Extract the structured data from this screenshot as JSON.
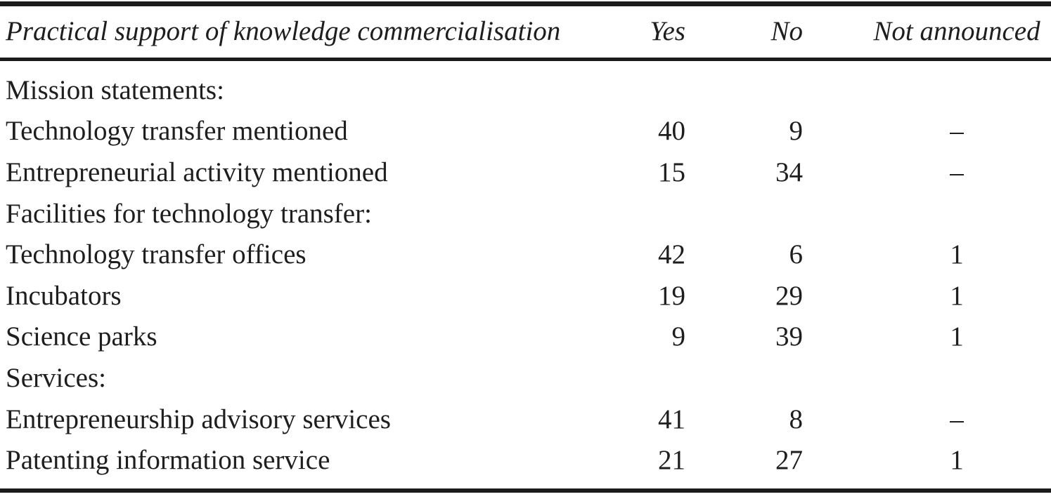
{
  "colors": {
    "background": "#ffffff",
    "text": "#1e1e1e",
    "rule": "#1b1b1b"
  },
  "table": {
    "header": {
      "col1": "Practical support of knowledge commercialisation",
      "col2": "Yes",
      "col3": "No",
      "col4": "Not announced"
    },
    "rows": [
      {
        "label": "Mission statements:",
        "yes": "",
        "no": "",
        "na": ""
      },
      {
        "label": "Technology transfer mentioned",
        "yes": "40",
        "no": "9",
        "na": "–"
      },
      {
        "label": "Entrepreneurial activity mentioned",
        "yes": "15",
        "no": "34",
        "na": "–"
      },
      {
        "label": "Facilities for technology transfer:",
        "yes": "",
        "no": "",
        "na": ""
      },
      {
        "label": "Technology transfer offices",
        "yes": "42",
        "no": "6",
        "na": "1"
      },
      {
        "label": "Incubators",
        "yes": "19",
        "no": "29",
        "na": "1"
      },
      {
        "label": "Science parks",
        "yes": "9",
        "no": "39",
        "na": "1"
      },
      {
        "label": "Services:",
        "yes": "",
        "no": "",
        "na": ""
      },
      {
        "label": "Entrepreneurship advisory services",
        "yes": "41",
        "no": "8",
        "na": "–"
      },
      {
        "label": "Patenting information service",
        "yes": "21",
        "no": "27",
        "na": "1"
      }
    ]
  },
  "chart_data": {
    "type": "table",
    "title": "Practical support of knowledge commercialisation",
    "columns": [
      "Practical support of knowledge commercialisation",
      "Yes",
      "No",
      "Not announced"
    ],
    "series": [
      {
        "name": "Yes",
        "categories": [
          "Technology transfer mentioned",
          "Entrepreneurial activity mentioned",
          "Technology transfer offices",
          "Incubators",
          "Science parks",
          "Entrepreneurship advisory services",
          "Patenting information service"
        ],
        "values": [
          40,
          15,
          42,
          19,
          9,
          41,
          21
        ]
      },
      {
        "name": "No",
        "values": [
          9,
          34,
          6,
          29,
          39,
          8,
          27
        ]
      },
      {
        "name": "Not announced",
        "values": [
          null,
          null,
          1,
          1,
          1,
          null,
          1
        ]
      }
    ]
  }
}
